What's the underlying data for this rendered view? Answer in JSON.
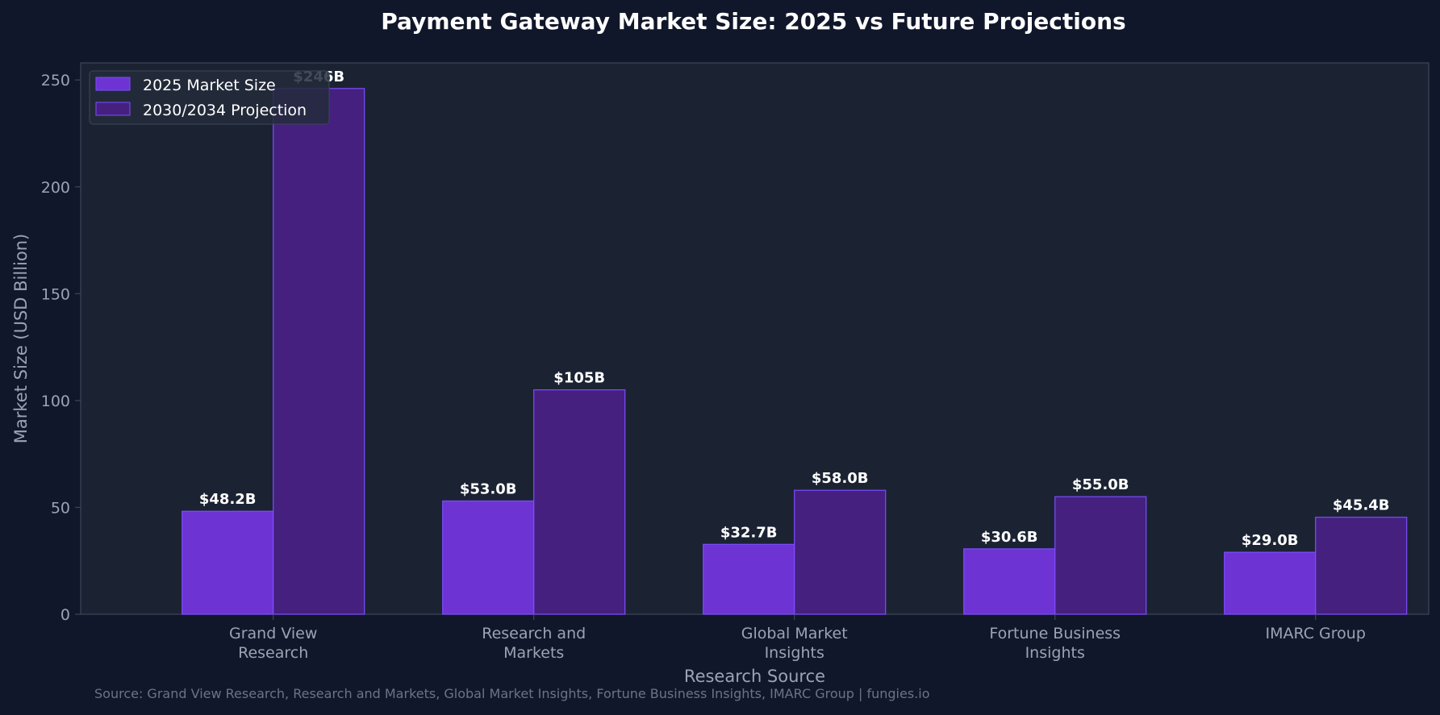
{
  "chart_data": {
    "type": "bar",
    "title": "Payment Gateway Market Size: 2025 vs Future Projections",
    "xlabel": "Research Source",
    "ylabel": "Market Size (USD Billion)",
    "categories": [
      [
        "Grand View",
        "Research"
      ],
      [
        "Research and",
        "Markets"
      ],
      [
        "Global Market",
        "Insights"
      ],
      [
        "Fortune Business",
        "Insights"
      ],
      [
        "IMARC Group"
      ]
    ],
    "series": [
      {
        "name": "2025 Market Size",
        "values": [
          48.2,
          53.0,
          32.7,
          30.6,
          29.0
        ],
        "labels": [
          "$48.2B",
          "$53.0B",
          "$32.7B",
          "$30.6B",
          "$29.0B"
        ],
        "color": "#6d33d3"
      },
      {
        "name": "2030/2034 Projection",
        "values": [
          246,
          105,
          58.0,
          55.0,
          45.4
        ],
        "labels": [
          "$246B",
          "$105B",
          "$58.0B",
          "$55.0B",
          "$45.4B"
        ],
        "color": "#45207f"
      }
    ],
    "ylim": [
      0,
      258
    ],
    "yticks": [
      0,
      50,
      100,
      150,
      200,
      250
    ],
    "grid": false,
    "legend_position": "top-left",
    "source_note": "Source: Grand View Research, Research and Markets, Global Market Insights, Fortune Business Insights, IMARC Group | fungies.io",
    "colors": {
      "background": "#11172a",
      "plot_background": "#1b2333",
      "axis": "#3c475a",
      "tick_text": "#9ba3b3",
      "title_text": "#ffffff",
      "bar_edge": "#7c4dff",
      "source_text": "#6b7385"
    }
  }
}
